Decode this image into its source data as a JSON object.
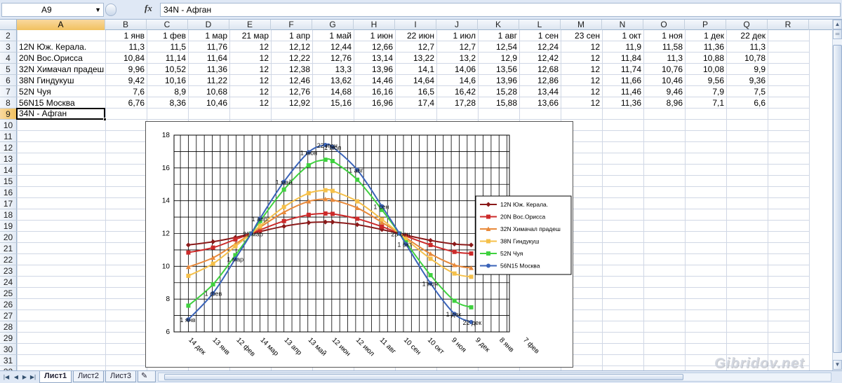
{
  "formula_bar": {
    "name_box": "A9",
    "fx_label": "fx",
    "formula": "34N - Афган"
  },
  "columns": [
    "A",
    "B",
    "C",
    "D",
    "E",
    "F",
    "G",
    "H",
    "I",
    "J",
    "K",
    "L",
    "M",
    "N",
    "O",
    "P",
    "Q",
    "R"
  ],
  "row_numbers": [
    "2",
    "3",
    "4",
    "5",
    "6",
    "7",
    "8",
    "9",
    "10",
    "11",
    "12",
    "13",
    "14",
    "15",
    "16",
    "17",
    "18",
    "19",
    "20",
    "21",
    "22",
    "23",
    "24",
    "25",
    "26",
    "27",
    "28",
    "29",
    "30",
    "31",
    "32"
  ],
  "table": {
    "header_dates": [
      "1 янв",
      "1 фев",
      "1 мар",
      "21 мар",
      "1 апр",
      "1 май",
      "1 июн",
      "22 июн",
      "1 июл",
      "1 авг",
      "1 сен",
      "23 сен",
      "1 окт",
      "1 ноя",
      "1 дек",
      "22 дек"
    ],
    "rows": [
      {
        "label": "12N Юж. Керала.",
        "values": [
          "11,3",
          "11,5",
          "11,76",
          "12",
          "12,12",
          "12,44",
          "12,66",
          "12,7",
          "12,7",
          "12,54",
          "12,24",
          "12",
          "11,9",
          "11,58",
          "11,36",
          "11,3"
        ]
      },
      {
        "label": "20N Вос.Орисса",
        "values": [
          "10,84",
          "11,14",
          "11,64",
          "12",
          "12,22",
          "12,76",
          "13,14",
          "13,22",
          "13,2",
          "12,9",
          "12,42",
          "12",
          "11,84",
          "11,3",
          "10,88",
          "10,78"
        ]
      },
      {
        "label": "32N Химачал прадеш",
        "values": [
          "9,96",
          "10,52",
          "11,36",
          "12",
          "12,38",
          "13,3",
          "13,96",
          "14,1",
          "14,06",
          "13,56",
          "12,68",
          "12",
          "11,74",
          "10,76",
          "10,08",
          "9,9"
        ]
      },
      {
        "label": "38N Гиндукуш",
        "values": [
          "9,42",
          "10,16",
          "11,22",
          "12",
          "12,46",
          "13,62",
          "14,46",
          "14,64",
          "14,6",
          "13,96",
          "12,86",
          "12",
          "11,66",
          "10,46",
          "9,56",
          "9,36"
        ]
      },
      {
        "label": "52N Чуя",
        "values": [
          "7,6",
          "8,9",
          "10,68",
          "12",
          "12,76",
          "14,68",
          "16,16",
          "16,5",
          "16,42",
          "15,28",
          "13,44",
          "12",
          "11,46",
          "9,46",
          "7,9",
          "7,5"
        ]
      },
      {
        "label": "56N15 Москва",
        "values": [
          "6,76",
          "8,36",
          "10,46",
          "12",
          "12,92",
          "15,16",
          "16,96",
          "17,4",
          "17,28",
          "15,88",
          "13,66",
          "12",
          "11,36",
          "8,96",
          "7,1",
          "6,6"
        ]
      }
    ],
    "active_cell_text": "34N - Афган"
  },
  "chart_data": {
    "type": "line",
    "title": "",
    "ylim": [
      6,
      18
    ],
    "yticks": [
      "6",
      "8",
      "10",
      "12",
      "14",
      "16",
      "18"
    ],
    "xlim_days": [
      -18,
      403
    ],
    "x_tick_labels": [
      "14 дек",
      "13 янв",
      "12 фев",
      "14 мар",
      "13 апр",
      "13 май",
      "12 июн",
      "12 июл",
      "11 авг",
      "10 сен",
      "10 окт",
      "9 ноя",
      "9 дек",
      "8 янв",
      "7 фев"
    ],
    "x_days": [
      0,
      31,
      59,
      79,
      90,
      120,
      151,
      172,
      181,
      212,
      243,
      265,
      273,
      304,
      334,
      355
    ],
    "point_labels": [
      {
        "text": "1 янв",
        "index": 0,
        "series": 5
      },
      {
        "text": "1 фев",
        "index": 1,
        "series": 5
      },
      {
        "text": "1 мар",
        "index": 2,
        "series": 5
      },
      {
        "text": "21 мар",
        "index": 3,
        "series": 5
      },
      {
        "text": "1 апр",
        "index": 4,
        "series": 5
      },
      {
        "text": "1 май",
        "index": 5,
        "series": 5
      },
      {
        "text": "1 июн",
        "index": 6,
        "series": 5
      },
      {
        "text": "22 июн",
        "index": 7,
        "series": 5
      },
      {
        "text": "1 июл",
        "index": 8,
        "series": 5
      },
      {
        "text": "1 авг",
        "index": 9,
        "series": 5
      },
      {
        "text": "1 сен",
        "index": 10,
        "series": 5
      },
      {
        "text": "23 сен",
        "index": 11,
        "series": 5
      },
      {
        "text": "1 окт",
        "index": 12,
        "series": 5
      },
      {
        "text": "1 ноя",
        "index": 13,
        "series": 5
      },
      {
        "text": "1 дек",
        "index": 14,
        "series": 5
      },
      {
        "text": "22 дек",
        "index": 15,
        "series": 5
      }
    ],
    "series": [
      {
        "name": "12N Юж. Керала.",
        "color": "#8b1a1a",
        "marker": "diamond",
        "values": [
          11.3,
          11.5,
          11.76,
          12,
          12.12,
          12.44,
          12.66,
          12.7,
          12.7,
          12.54,
          12.24,
          12,
          11.9,
          11.58,
          11.36,
          11.3
        ]
      },
      {
        "name": "20N Вос.Орисса",
        "color": "#cc2a2a",
        "marker": "square",
        "values": [
          10.84,
          11.14,
          11.64,
          12,
          12.22,
          12.76,
          13.14,
          13.22,
          13.2,
          12.9,
          12.42,
          12,
          11.84,
          11.3,
          10.88,
          10.78
        ]
      },
      {
        "name": "32N Химачал прадеш",
        "color": "#e8893a",
        "marker": "triangle",
        "values": [
          9.96,
          10.52,
          11.36,
          12,
          12.38,
          13.3,
          13.96,
          14.1,
          14.06,
          13.56,
          12.68,
          12,
          11.74,
          10.76,
          10.08,
          9.9
        ]
      },
      {
        "name": "38N Гиндукуш",
        "color": "#f5c04a",
        "marker": "square",
        "values": [
          9.42,
          10.16,
          11.22,
          12,
          12.46,
          13.62,
          14.46,
          14.64,
          14.6,
          13.96,
          12.86,
          12,
          11.66,
          10.46,
          9.56,
          9.36
        ]
      },
      {
        "name": "52N Чуя",
        "color": "#3fd13f",
        "marker": "square",
        "values": [
          7.6,
          8.9,
          10.68,
          12,
          12.76,
          14.68,
          16.16,
          16.5,
          16.42,
          15.28,
          13.44,
          12,
          11.46,
          9.46,
          7.9,
          7.5
        ]
      },
      {
        "name": "56N15 Москва",
        "color": "#3a63b8",
        "marker": "circle",
        "values": [
          6.76,
          8.36,
          10.46,
          12,
          12.92,
          15.16,
          16.96,
          17.4,
          17.28,
          15.88,
          13.66,
          12,
          11.36,
          8.96,
          7.1,
          6.6
        ]
      }
    ],
    "legend_position": "right",
    "grid": true
  },
  "sheet_tabs": [
    "Лист1",
    "Лист2",
    "Лист3"
  ],
  "watermark": "Gibridov.net"
}
